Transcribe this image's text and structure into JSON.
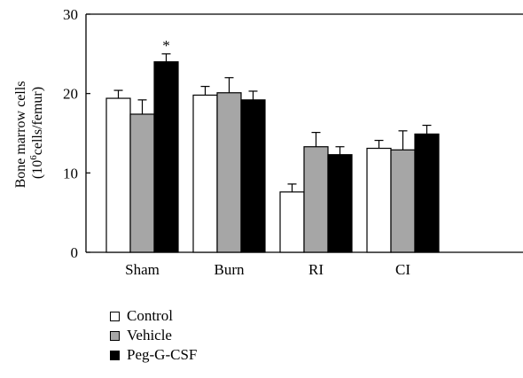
{
  "chart_data": {
    "type": "bar",
    "title": "",
    "xlabel": "",
    "ylabel_line1": "Bone marrow cells",
    "ylabel_line2_prefix": "(10",
    "ylabel_line2_sup": "6",
    "ylabel_line2_suffix": "cells/femur)",
    "ylim": [
      0,
      30
    ],
    "yticks": [
      0,
      10,
      20,
      30
    ],
    "categories": [
      "Sham",
      "Burn",
      "RI",
      "CI"
    ],
    "series": [
      {
        "name": "Control",
        "color": "#ffffff",
        "values": [
          19.4,
          19.8,
          7.6,
          13.1
        ],
        "errors": [
          1.0,
          1.1,
          1.0,
          1.0
        ]
      },
      {
        "name": "Vehicle",
        "color": "#a6a6a6",
        "values": [
          17.4,
          20.1,
          13.3,
          12.9
        ],
        "errors": [
          1.8,
          1.9,
          1.8,
          2.4
        ]
      },
      {
        "name": "Peg-G-CSF",
        "color": "#000000",
        "values": [
          24.0,
          19.2,
          12.3,
          14.9
        ],
        "errors": [
          1.0,
          1.1,
          1.0,
          1.1
        ]
      }
    ],
    "annotations": [
      {
        "category": "Sham",
        "series": "Peg-G-CSF",
        "text": "*"
      }
    ],
    "grid": false,
    "legend_position": "bottom-left"
  }
}
